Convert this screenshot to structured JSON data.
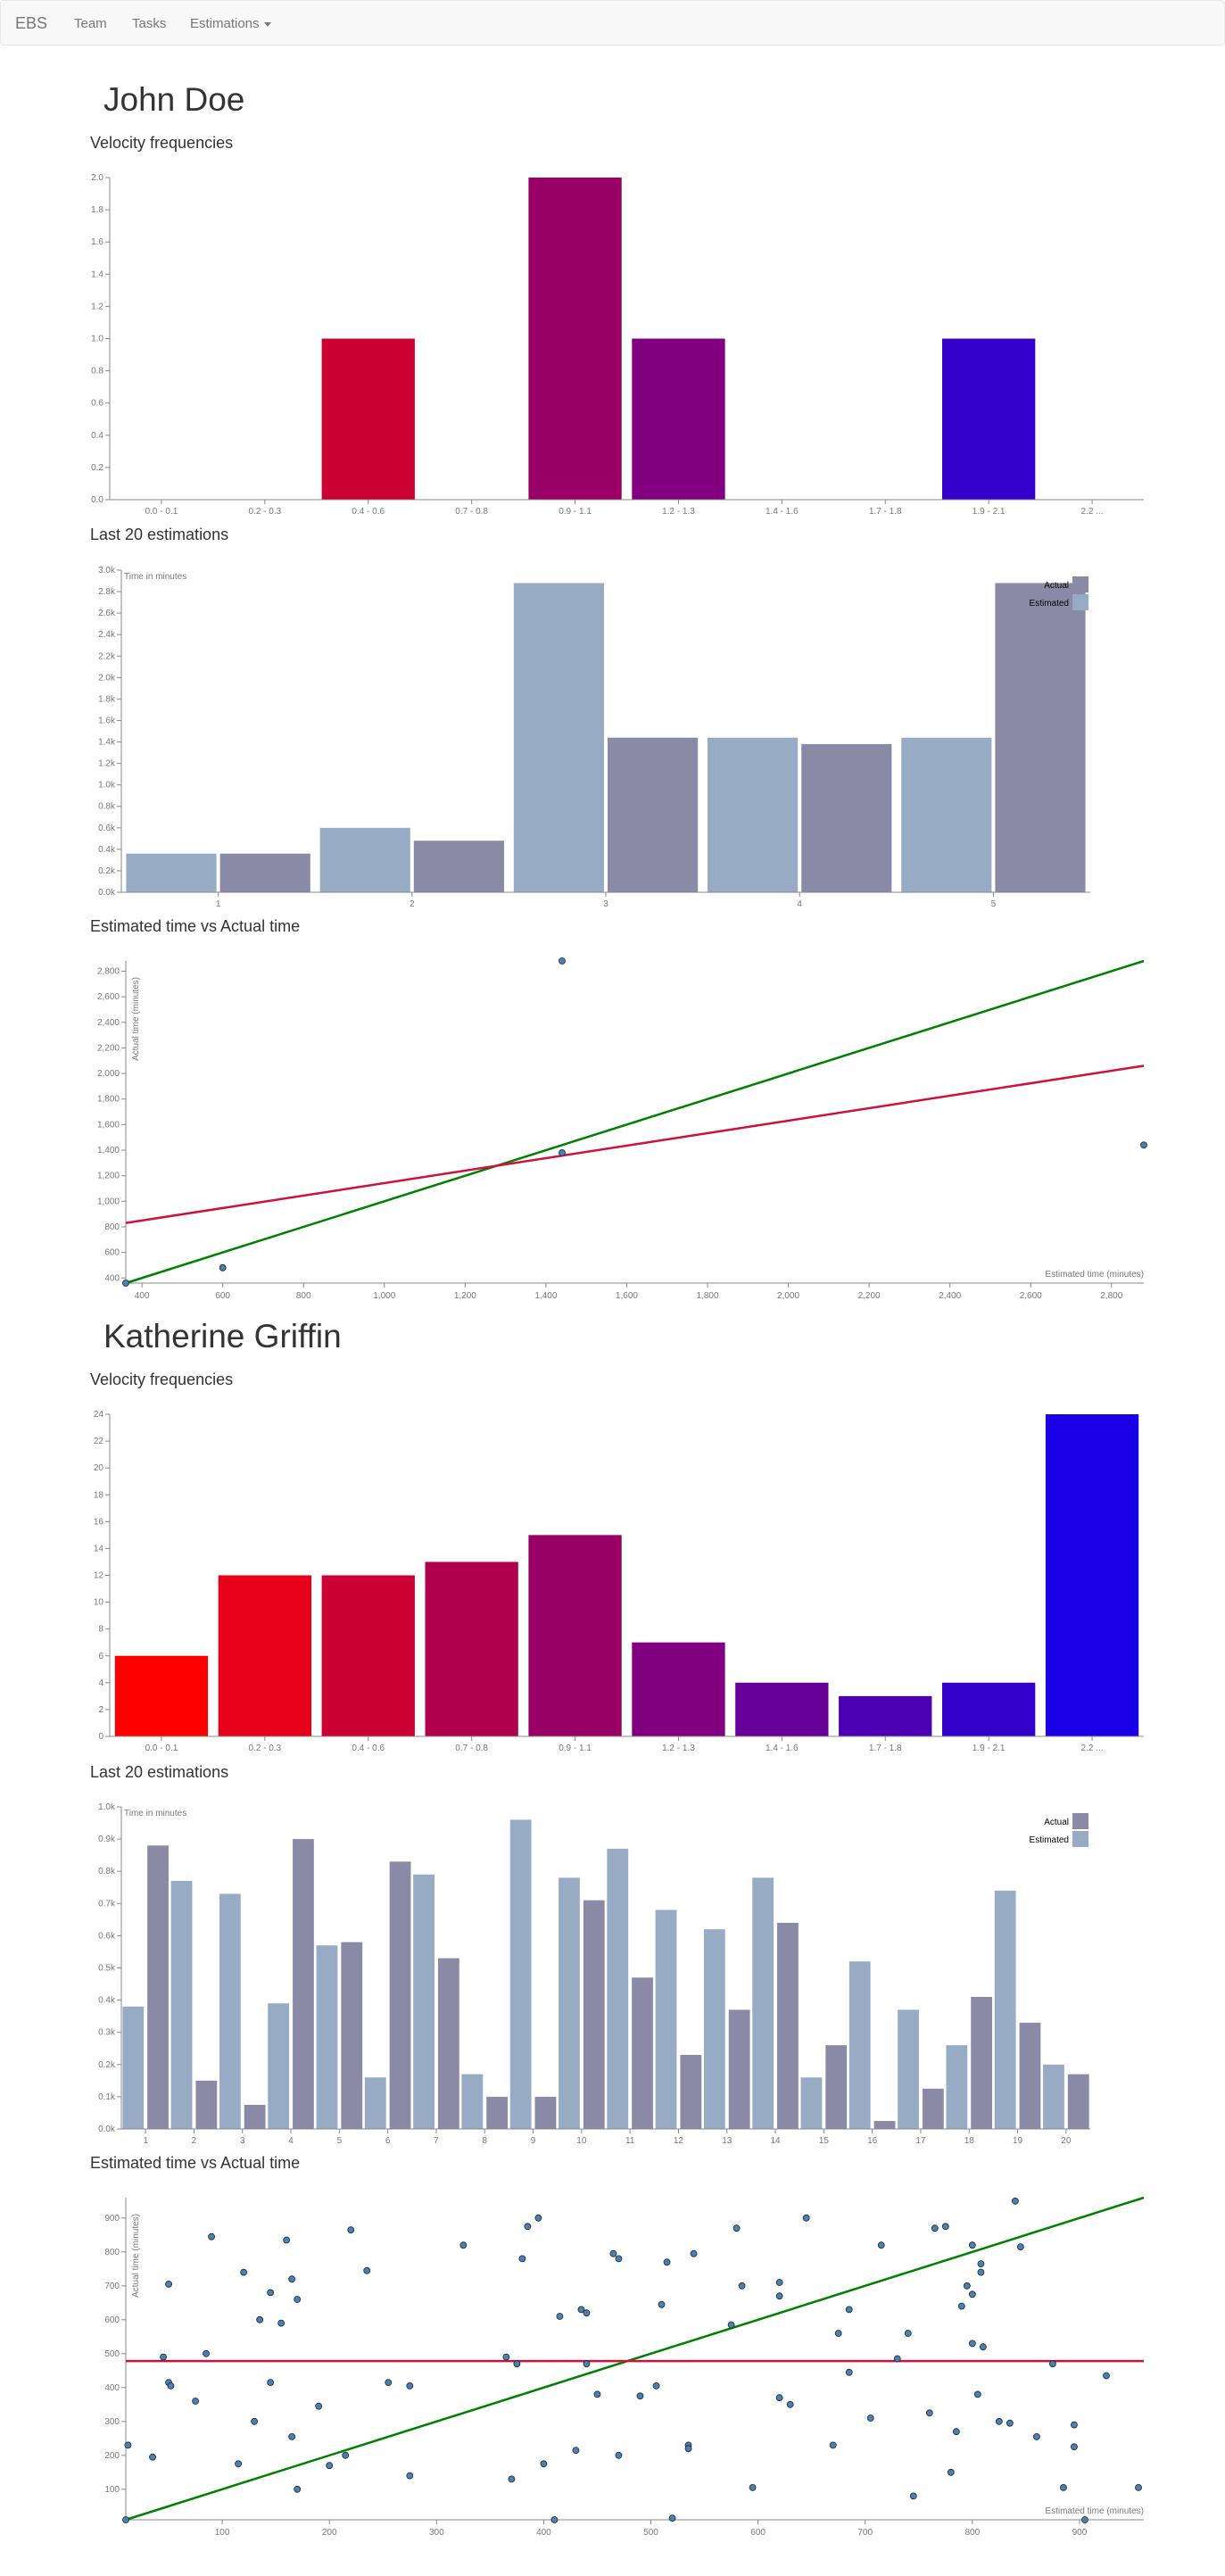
{
  "navbar": {
    "brand": "EBS",
    "items": [
      {
        "label": "Team",
        "dropdown": false
      },
      {
        "label": "Tasks",
        "dropdown": false
      },
      {
        "label": "Estimations",
        "dropdown": true
      }
    ]
  },
  "users": [
    {
      "name": "John Doe",
      "velocity_title": "Velocity frequencies",
      "estimations_title": "Last 20 estimations",
      "scatter_title": "Estimated time vs Actual time"
    },
    {
      "name": "Katherine Griffin",
      "velocity_title": "Velocity frequencies",
      "estimations_title": "Last 20 estimations",
      "scatter_title": "Estimated time vs Actual time"
    }
  ],
  "chart_data": [
    {
      "type": "bar",
      "user": "John Doe",
      "title": "Velocity frequencies",
      "categories": [
        "0.0 - 0.1",
        "0.2 - 0.3",
        "0.4 - 0.6",
        "0.7 - 0.8",
        "0.9 - 1.1",
        "1.2 - 1.3",
        "1.4 - 1.6",
        "1.7 - 1.8",
        "1.9 - 2.1",
        "2.2 ..."
      ],
      "values": [
        0,
        0,
        1,
        0,
        2,
        1,
        0,
        0,
        1,
        0
      ],
      "colors": [
        "#ff0000",
        "#e60019",
        "#cc0033",
        "#b3004c",
        "#990066",
        "#800080",
        "#660099",
        "#4c00b3",
        "#3300cc",
        "#1900e6"
      ],
      "ylim": [
        0,
        2
      ],
      "yticks": [
        "0.0",
        "0.2",
        "0.4",
        "0.6",
        "0.8",
        "1.0",
        "1.2",
        "1.4",
        "1.6",
        "1.8",
        "2.0"
      ]
    },
    {
      "type": "bar",
      "user": "John Doe",
      "title": "Last 20 estimations",
      "ylabel": "Time in minutes",
      "categories": [
        "1",
        "2",
        "3",
        "4",
        "5"
      ],
      "series": [
        {
          "name": "Estimated",
          "color": "#98abc5",
          "values": [
            360,
            600,
            2880,
            1440,
            1440
          ]
        },
        {
          "name": "Actual",
          "color": "#8a89a6",
          "values": [
            360,
            480,
            1440,
            1380,
            2880
          ]
        }
      ],
      "legend_order": [
        "Actual",
        "Estimated"
      ],
      "ylim": [
        0,
        3000
      ],
      "yticks": [
        "0.0k",
        "0.2k",
        "0.4k",
        "0.6k",
        "0.8k",
        "1.0k",
        "1.2k",
        "1.4k",
        "1.6k",
        "1.8k",
        "2.0k",
        "2.2k",
        "2.4k",
        "2.6k",
        "2.8k",
        "3.0k"
      ]
    },
    {
      "type": "scatter",
      "user": "John Doe",
      "title": "Estimated time vs Actual time",
      "xlabel": "Estimated time (minutes)",
      "ylabel": "Actual time (minutes)",
      "xlim": [
        360,
        2880
      ],
      "ylim": [
        360,
        2880
      ],
      "xticks": [
        400,
        600,
        800,
        1000,
        1200,
        1400,
        1600,
        1800,
        2000,
        2200,
        2400,
        2600,
        2800
      ],
      "yticks": [
        400,
        600,
        800,
        1000,
        1200,
        1400,
        1600,
        1800,
        2000,
        2200,
        2400,
        2600,
        2800
      ],
      "points": [
        [
          360,
          360
        ],
        [
          600,
          480
        ],
        [
          1440,
          2880
        ],
        [
          1440,
          1380
        ],
        [
          2880,
          1440
        ]
      ],
      "lines": [
        {
          "color": "#008000",
          "from": [
            360,
            360
          ],
          "to": [
            2880,
            2880
          ]
        },
        {
          "color": "#d0103a",
          "from": [
            360,
            830
          ],
          "to": [
            2880,
            2060
          ]
        }
      ]
    },
    {
      "type": "bar",
      "user": "Katherine Griffin",
      "title": "Velocity frequencies",
      "categories": [
        "0.0 - 0.1",
        "0.2 - 0.3",
        "0.4 - 0.6",
        "0.7 - 0.8",
        "0.9 - 1.1",
        "1.2 - 1.3",
        "1.4 - 1.6",
        "1.7 - 1.8",
        "1.9 - 2.1",
        "2.2 ..."
      ],
      "values": [
        6,
        12,
        12,
        13,
        15,
        7,
        4,
        3,
        4,
        24
      ],
      "colors": [
        "#ff0000",
        "#e60019",
        "#cc0033",
        "#b3004c",
        "#990066",
        "#800080",
        "#660099",
        "#4c00b3",
        "#3300cc",
        "#1900e6"
      ],
      "ylim": [
        0,
        24
      ],
      "yticks": [
        "0",
        "2",
        "4",
        "6",
        "8",
        "10",
        "12",
        "14",
        "16",
        "18",
        "20",
        "22",
        "24"
      ]
    },
    {
      "type": "bar",
      "user": "Katherine Griffin",
      "title": "Last 20 estimations",
      "ylabel": "Time in minutes",
      "categories": [
        "1",
        "2",
        "3",
        "4",
        "5",
        "6",
        "7",
        "8",
        "9",
        "10",
        "11",
        "12",
        "13",
        "14",
        "15",
        "16",
        "17",
        "18",
        "19",
        "20"
      ],
      "series": [
        {
          "name": "Estimated",
          "color": "#98abc5",
          "values": [
            380,
            770,
            730,
            390,
            570,
            160,
            790,
            170,
            960,
            780,
            870,
            680,
            620,
            780,
            160,
            520,
            370,
            260,
            740,
            200
          ]
        },
        {
          "name": "Actual",
          "color": "#8a89a6",
          "values": [
            880,
            150,
            75,
            900,
            580,
            830,
            530,
            100,
            100,
            710,
            470,
            230,
            370,
            640,
            260,
            25,
            125,
            410,
            330,
            170
          ]
        }
      ],
      "legend_order": [
        "Actual",
        "Estimated"
      ],
      "ylim": [
        0,
        1000
      ],
      "yticks": [
        "0.0k",
        "0.1k",
        "0.2k",
        "0.3k",
        "0.4k",
        "0.5k",
        "0.6k",
        "0.7k",
        "0.8k",
        "0.9k",
        "1.0k"
      ]
    },
    {
      "type": "scatter",
      "user": "Katherine Griffin",
      "title": "Estimated time vs Actual time",
      "xlabel": "Estimated time (minutes)",
      "ylabel": "Actual time (minutes)",
      "xlim": [
        10,
        960
      ],
      "ylim": [
        10,
        960
      ],
      "xticks": [
        100,
        200,
        300,
        400,
        500,
        600,
        700,
        800,
        900
      ],
      "yticks": [
        100,
        200,
        300,
        400,
        500,
        600,
        700,
        800,
        900
      ],
      "points": [
        [
          10,
          10
        ],
        [
          12,
          230
        ],
        [
          35,
          195
        ],
        [
          45,
          490
        ],
        [
          50,
          415
        ],
        [
          52,
          405
        ],
        [
          50,
          705
        ],
        [
          75,
          360
        ],
        [
          85,
          500
        ],
        [
          90,
          845
        ],
        [
          115,
          175
        ],
        [
          120,
          740
        ],
        [
          130,
          300
        ],
        [
          135,
          600
        ],
        [
          145,
          680
        ],
        [
          145,
          415
        ],
        [
          155,
          590
        ],
        [
          160,
          835
        ],
        [
          165,
          255
        ],
        [
          165,
          720
        ],
        [
          170,
          660
        ],
        [
          170,
          100
        ],
        [
          190,
          345
        ],
        [
          200,
          170
        ],
        [
          215,
          200
        ],
        [
          220,
          865
        ],
        [
          235,
          745
        ],
        [
          255,
          415
        ],
        [
          275,
          140
        ],
        [
          275,
          405
        ],
        [
          325,
          820
        ],
        [
          365,
          490
        ],
        [
          370,
          130
        ],
        [
          375,
          470
        ],
        [
          380,
          780
        ],
        [
          385,
          875
        ],
        [
          395,
          900
        ],
        [
          400,
          175
        ],
        [
          410,
          10
        ],
        [
          415,
          610
        ],
        [
          430,
          215
        ],
        [
          435,
          630
        ],
        [
          440,
          620
        ],
        [
          440,
          470
        ],
        [
          450,
          380
        ],
        [
          465,
          795
        ],
        [
          470,
          200
        ],
        [
          470,
          780
        ],
        [
          490,
          375
        ],
        [
          505,
          405
        ],
        [
          510,
          645
        ],
        [
          515,
          770
        ],
        [
          520,
          15
        ],
        [
          535,
          230
        ],
        [
          535,
          220
        ],
        [
          540,
          795
        ],
        [
          575,
          585
        ],
        [
          580,
          870
        ],
        [
          585,
          700
        ],
        [
          595,
          105
        ],
        [
          620,
          710
        ],
        [
          620,
          670
        ],
        [
          620,
          370
        ],
        [
          630,
          350
        ],
        [
          645,
          900
        ],
        [
          670,
          230
        ],
        [
          675,
          560
        ],
        [
          685,
          445
        ],
        [
          685,
          630
        ],
        [
          705,
          310
        ],
        [
          715,
          820
        ],
        [
          730,
          485
        ],
        [
          740,
          560
        ],
        [
          745,
          80
        ],
        [
          760,
          325
        ],
        [
          765,
          870
        ],
        [
          775,
          875
        ],
        [
          780,
          150
        ],
        [
          785,
          270
        ],
        [
          790,
          640
        ],
        [
          795,
          700
        ],
        [
          800,
          675
        ],
        [
          800,
          530
        ],
        [
          800,
          820
        ],
        [
          805,
          380
        ],
        [
          808,
          765
        ],
        [
          808,
          740
        ],
        [
          810,
          520
        ],
        [
          825,
          300
        ],
        [
          835,
          295
        ],
        [
          840,
          950
        ],
        [
          845,
          815
        ],
        [
          860,
          255
        ],
        [
          875,
          470
        ],
        [
          885,
          105
        ],
        [
          895,
          225
        ],
        [
          895,
          290
        ],
        [
          905,
          10
        ],
        [
          925,
          435
        ],
        [
          955,
          105
        ]
      ],
      "lines": [
        {
          "color": "#008000",
          "from": [
            10,
            10
          ],
          "to": [
            960,
            960
          ]
        },
        {
          "color": "#d0103a",
          "from": [
            10,
            478
          ],
          "to": [
            960,
            478
          ]
        }
      ]
    }
  ]
}
